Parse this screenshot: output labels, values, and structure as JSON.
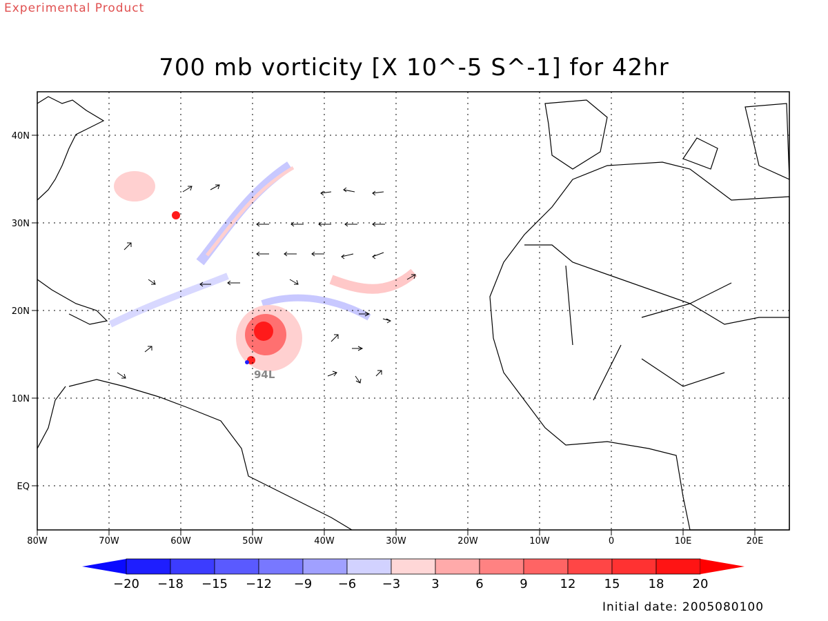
{
  "header": {
    "experimental": "Experimental Product",
    "title": "700 mb vorticity [X 10^-5 S^-1] for 42hr"
  },
  "footer": {
    "initial_date": "Initial date: 2005080100"
  },
  "map": {
    "lon_ticks": [
      "80W",
      "70W",
      "60W",
      "50W",
      "40W",
      "30W",
      "20W",
      "10W",
      "0",
      "10E",
      "20E"
    ],
    "lat_ticks": [
      "40N",
      "30N",
      "20N",
      "10N",
      "EQ"
    ],
    "storm_label": "94L",
    "colorbar": {
      "ticks": [
        "-20",
        "-18",
        "-15",
        "-12",
        "-9",
        "-6",
        "-3",
        "3",
        "6",
        "9",
        "12",
        "15",
        "18",
        "20"
      ],
      "colors": [
        "#1e1eff",
        "#3c3cff",
        "#5a5aff",
        "#7878ff",
        "#a0a0ff",
        "#d2d2ff",
        "#ffffff",
        "#ffd7d7",
        "#ffaaaa",
        "#ff8282",
        "#ff6464",
        "#ff4646",
        "#ff3232",
        "#ff1414"
      ],
      "low_end_color": "#0a0aff",
      "high_end_color": "#ff0000"
    }
  }
}
